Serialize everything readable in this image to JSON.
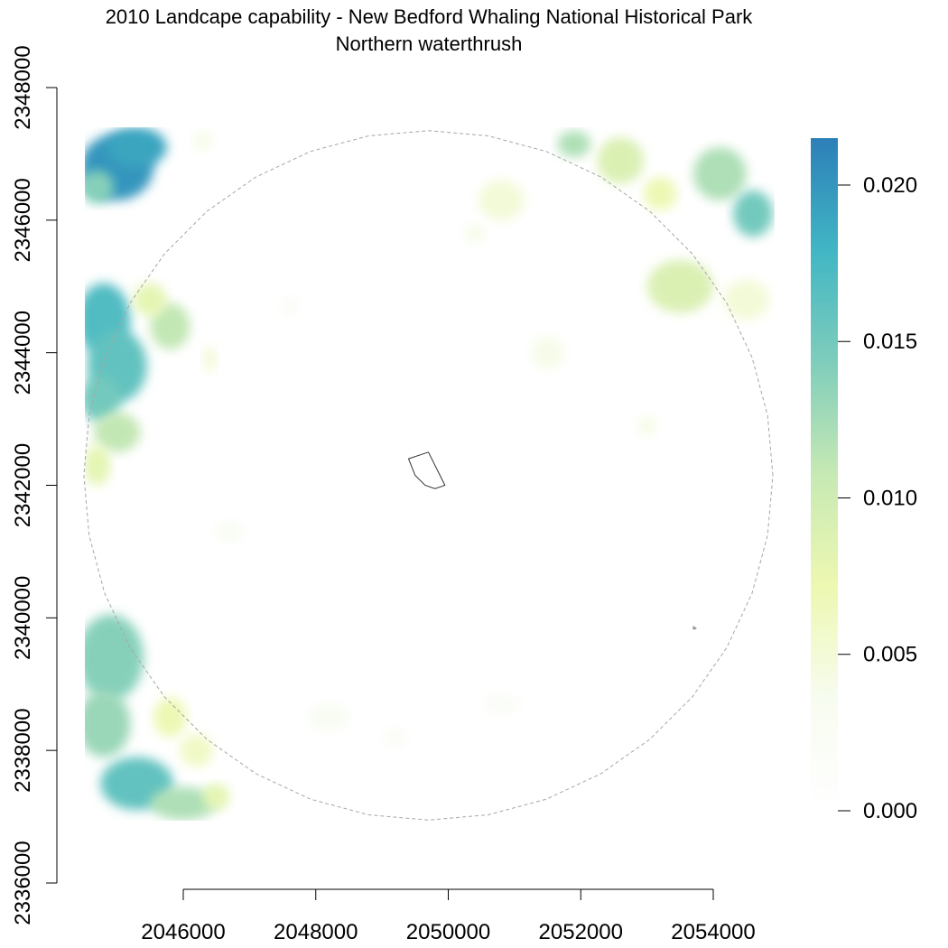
{
  "figure": {
    "title": "2010 Landcape capability - New Bedford Whaling National Historical Park",
    "subtitle": "Northern waterthrush"
  },
  "chart_data": {
    "type": "heatmap",
    "title": "2010 Landcape capability - New Bedford Whaling National Historical Park",
    "subtitle": "Northern waterthrush",
    "x_ticks": [
      "2046000",
      "2048000",
      "2050000",
      "2052000",
      "2054000"
    ],
    "y_ticks": [
      "2336000",
      "2338000",
      "2340000",
      "2342000",
      "2344000",
      "2346000",
      "2348000"
    ],
    "xlim": [
      2044500,
      2054900
    ],
    "ylim": [
      2336000,
      2348000
    ],
    "raster_extent": {
      "x": [
        2044500,
        2054900
      ],
      "y": [
        2337000,
        2347400
      ]
    },
    "colorbar": {
      "ticks": [
        "0.000",
        "0.005",
        "0.010",
        "0.015",
        "0.020"
      ],
      "range": [
        0,
        0.0215
      ],
      "colors": [
        "#ffffff",
        "#f7fcf0",
        "#edf8b1",
        "#c7e9b4",
        "#7fcdbb",
        "#41b6c4",
        "#2c7fb8"
      ]
    },
    "buffer_circle": {
      "center": [
        2049700,
        2342150
      ],
      "radius": 5200,
      "style": "dashed",
      "color": "#999999"
    },
    "park_boundary": [
      [
        2049400,
        2342400
      ],
      [
        2049700,
        2342500
      ],
      [
        2049950,
        2342000
      ],
      [
        2049800,
        2341950
      ],
      [
        2049650,
        2342000
      ],
      [
        2049500,
        2342150
      ]
    ],
    "habitat_patches": [
      {
        "x": 2045000,
        "y": 2346800,
        "rx": 550,
        "ry": 500,
        "v": 0.02
      },
      {
        "x": 2045300,
        "y": 2347100,
        "rx": 450,
        "ry": 300,
        "v": 0.019
      },
      {
        "x": 2044700,
        "y": 2346500,
        "rx": 250,
        "ry": 250,
        "v": 0.014
      },
      {
        "x": 2046300,
        "y": 2347200,
        "rx": 150,
        "ry": 150,
        "v": 0.004
      },
      {
        "x": 2044800,
        "y": 2344500,
        "rx": 400,
        "ry": 550,
        "v": 0.017
      },
      {
        "x": 2045000,
        "y": 2343800,
        "rx": 450,
        "ry": 550,
        "v": 0.016
      },
      {
        "x": 2044750,
        "y": 2343300,
        "rx": 300,
        "ry": 350,
        "v": 0.015
      },
      {
        "x": 2045800,
        "y": 2344400,
        "rx": 300,
        "ry": 350,
        "v": 0.011
      },
      {
        "x": 2045500,
        "y": 2344800,
        "rx": 250,
        "ry": 250,
        "v": 0.008
      },
      {
        "x": 2046400,
        "y": 2343900,
        "rx": 100,
        "ry": 200,
        "v": 0.005
      },
      {
        "x": 2045000,
        "y": 2342800,
        "rx": 350,
        "ry": 300,
        "v": 0.011
      },
      {
        "x": 2044700,
        "y": 2342300,
        "rx": 200,
        "ry": 300,
        "v": 0.008
      },
      {
        "x": 2044900,
        "y": 2339400,
        "rx": 500,
        "ry": 650,
        "v": 0.014
      },
      {
        "x": 2044800,
        "y": 2338400,
        "rx": 400,
        "ry": 500,
        "v": 0.013
      },
      {
        "x": 2045300,
        "y": 2337500,
        "rx": 550,
        "ry": 400,
        "v": 0.016
      },
      {
        "x": 2046000,
        "y": 2337200,
        "rx": 500,
        "ry": 250,
        "v": 0.012
      },
      {
        "x": 2045800,
        "y": 2338500,
        "rx": 250,
        "ry": 300,
        "v": 0.007
      },
      {
        "x": 2046200,
        "y": 2338000,
        "rx": 250,
        "ry": 250,
        "v": 0.006
      },
      {
        "x": 2046500,
        "y": 2337300,
        "rx": 200,
        "ry": 200,
        "v": 0.008
      },
      {
        "x": 2051900,
        "y": 2347150,
        "rx": 250,
        "ry": 200,
        "v": 0.012
      },
      {
        "x": 2052600,
        "y": 2346900,
        "rx": 350,
        "ry": 350,
        "v": 0.009
      },
      {
        "x": 2053200,
        "y": 2346400,
        "rx": 250,
        "ry": 250,
        "v": 0.007
      },
      {
        "x": 2054100,
        "y": 2346700,
        "rx": 400,
        "ry": 400,
        "v": 0.012
      },
      {
        "x": 2054600,
        "y": 2346100,
        "rx": 300,
        "ry": 350,
        "v": 0.015
      },
      {
        "x": 2053500,
        "y": 2345000,
        "rx": 500,
        "ry": 400,
        "v": 0.009
      },
      {
        "x": 2054500,
        "y": 2344800,
        "rx": 350,
        "ry": 300,
        "v": 0.005
      },
      {
        "x": 2050800,
        "y": 2346300,
        "rx": 350,
        "ry": 300,
        "v": 0.005
      },
      {
        "x": 2050400,
        "y": 2345800,
        "rx": 150,
        "ry": 150,
        "v": 0.004
      },
      {
        "x": 2051500,
        "y": 2344000,
        "rx": 250,
        "ry": 250,
        "v": 0.004
      },
      {
        "x": 2053000,
        "y": 2342900,
        "rx": 150,
        "ry": 150,
        "v": 0.004
      },
      {
        "x": 2046700,
        "y": 2341300,
        "rx": 200,
        "ry": 150,
        "v": 0.003
      },
      {
        "x": 2047600,
        "y": 2344700,
        "rx": 150,
        "ry": 150,
        "v": 0.002
      },
      {
        "x": 2048200,
        "y": 2338500,
        "rx": 300,
        "ry": 200,
        "v": 0.003
      },
      {
        "x": 2049200,
        "y": 2338200,
        "rx": 200,
        "ry": 150,
        "v": 0.002
      },
      {
        "x": 2050800,
        "y": 2338700,
        "rx": 300,
        "ry": 150,
        "v": 0.002
      }
    ]
  }
}
